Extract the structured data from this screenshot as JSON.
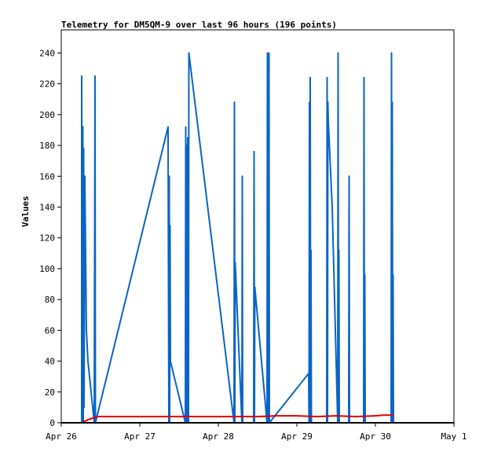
{
  "chart_data": {
    "type": "line",
    "title": "Telemetry for DM5QM-9 over last 96 hours (196 points)",
    "xlabel": "",
    "ylabel": "Values",
    "x_range": [
      0,
      5
    ],
    "xlim_dates": [
      "Apr 26",
      "May 1"
    ],
    "ylim": [
      0,
      255
    ],
    "x_ticks": [
      {
        "value": 0,
        "label": "Apr 26"
      },
      {
        "value": 1,
        "label": "Apr 27"
      },
      {
        "value": 2,
        "label": "Apr 28"
      },
      {
        "value": 3,
        "label": "Apr 29"
      },
      {
        "value": 4,
        "label": "Apr 30"
      },
      {
        "value": 5,
        "label": "May 1"
      }
    ],
    "y_ticks": [
      {
        "value": 0,
        "label": "0"
      },
      {
        "value": 20,
        "label": "20"
      },
      {
        "value": 40,
        "label": "40"
      },
      {
        "value": 60,
        "label": "60"
      },
      {
        "value": 80,
        "label": "80"
      },
      {
        "value": 100,
        "label": "100"
      },
      {
        "value": 120,
        "label": "120"
      },
      {
        "value": 140,
        "label": "140"
      },
      {
        "value": 160,
        "label": "160"
      },
      {
        "value": 180,
        "label": "180"
      },
      {
        "value": 200,
        "label": "200"
      },
      {
        "value": 220,
        "label": "220"
      },
      {
        "value": 240,
        "label": "240"
      }
    ],
    "grid": false,
    "series": [
      {
        "color": "#0a64c8",
        "points": [
          [
            0.26,
            0
          ],
          [
            0.26,
            225
          ],
          [
            0.27,
            0
          ],
          [
            0.275,
            192
          ],
          [
            0.28,
            0
          ],
          [
            0.285,
            178
          ],
          [
            0.29,
            10
          ],
          [
            0.3,
            160
          ],
          [
            0.32,
            60
          ],
          [
            0.34,
            40
          ],
          [
            0.42,
            0
          ],
          [
            0.43,
            225
          ],
          [
            0.435,
            0
          ],
          [
            1.36,
            192
          ],
          [
            1.37,
            0
          ],
          [
            1.375,
            160
          ],
          [
            1.38,
            0
          ],
          [
            1.385,
            128
          ],
          [
            1.39,
            40
          ],
          [
            1.58,
            0
          ],
          [
            1.585,
            192
          ],
          [
            1.59,
            0
          ],
          [
            1.6,
            180
          ],
          [
            1.605,
            0
          ],
          [
            1.61,
            185
          ],
          [
            1.62,
            0
          ],
          [
            1.625,
            240
          ],
          [
            2.2,
            0
          ],
          [
            2.205,
            208
          ],
          [
            2.21,
            0
          ],
          [
            2.215,
            104
          ],
          [
            2.3,
            0
          ],
          [
            2.305,
            160
          ],
          [
            2.31,
            0
          ],
          [
            2.45,
            0
          ],
          [
            2.455,
            176
          ],
          [
            2.46,
            0
          ],
          [
            2.465,
            88
          ],
          [
            2.62,
            0
          ],
          [
            2.625,
            240
          ],
          [
            2.63,
            0
          ],
          [
            2.635,
            176
          ],
          [
            2.64,
            0
          ],
          [
            2.645,
            240
          ],
          [
            2.65,
            0
          ],
          [
            3.15,
            32
          ],
          [
            3.155,
            0
          ],
          [
            3.16,
            208
          ],
          [
            3.165,
            0
          ],
          [
            3.17,
            224
          ],
          [
            3.175,
            0
          ],
          [
            3.18,
            112
          ],
          [
            3.185,
            0
          ],
          [
            3.38,
            0
          ],
          [
            3.385,
            224
          ],
          [
            3.39,
            0
          ],
          [
            3.395,
            208
          ],
          [
            3.4,
            196
          ],
          [
            3.45,
            140
          ],
          [
            3.52,
            0
          ],
          [
            3.525,
            240
          ],
          [
            3.53,
            0
          ],
          [
            3.535,
            112
          ],
          [
            3.54,
            0
          ],
          [
            3.66,
            0
          ],
          [
            3.665,
            160
          ],
          [
            3.67,
            0
          ],
          [
            3.85,
            0
          ],
          [
            3.855,
            224
          ],
          [
            3.86,
            0
          ],
          [
            3.865,
            96
          ],
          [
            3.87,
            0
          ],
          [
            4.2,
            0
          ],
          [
            4.205,
            240
          ],
          [
            4.21,
            0
          ],
          [
            4.215,
            208
          ],
          [
            4.22,
            0
          ],
          [
            4.225,
            96
          ],
          [
            4.23,
            0
          ]
        ]
      },
      {
        "color": "#e00000",
        "points": [
          [
            0.26,
            0
          ],
          [
            0.3,
            1
          ],
          [
            0.34,
            2
          ],
          [
            0.4,
            3
          ],
          [
            0.45,
            4
          ],
          [
            0.55,
            4
          ],
          [
            1.0,
            4
          ],
          [
            1.5,
            4
          ],
          [
            2.0,
            4
          ],
          [
            2.3,
            4
          ],
          [
            2.5,
            4
          ],
          [
            2.75,
            4.5
          ],
          [
            3.0,
            4.5
          ],
          [
            3.25,
            4
          ],
          [
            3.5,
            4.5
          ],
          [
            3.75,
            4
          ],
          [
            4.0,
            4.5
          ],
          [
            4.1,
            5
          ],
          [
            4.2,
            5
          ],
          [
            4.23,
            5
          ]
        ]
      }
    ]
  }
}
